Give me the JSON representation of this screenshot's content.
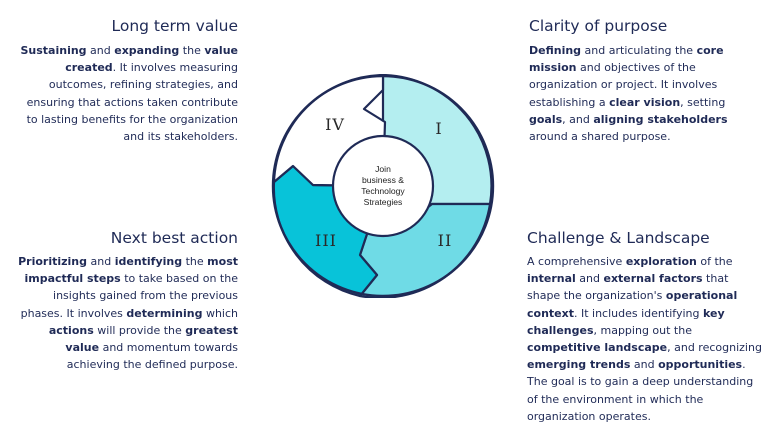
{
  "colors": {
    "segment_I": "#b4eef0",
    "segment_II": "#6fdbe6",
    "segment_III": "#08c3d9",
    "segment_IV": "#ffffff",
    "outline": "#1f2a56",
    "text": "#1f2a56"
  },
  "center": {
    "lines": [
      "Join",
      "business &",
      "Technology",
      "Strategies"
    ]
  },
  "segments": [
    {
      "numeral": "I"
    },
    {
      "numeral": "II"
    },
    {
      "numeral": "III"
    },
    {
      "numeral": "IV"
    }
  ],
  "quadrants": {
    "top_left": {
      "title": "Long term value",
      "body": [
        {
          "text": "Sustaining",
          "bold": true
        },
        {
          "text": " and ",
          "bold": false
        },
        {
          "text": "expanding",
          "bold": true
        },
        {
          "text": " the ",
          "bold": false
        },
        {
          "text": "value created",
          "bold": true
        },
        {
          "text": ". It involves measuring outcomes, refining strategies, and ensuring that actions taken contribute to lasting benefits for the organization and its stakeholders.",
          "bold": false
        }
      ]
    },
    "top_right": {
      "title": "Clarity of purpose",
      "body": [
        {
          "text": "Defining",
          "bold": true
        },
        {
          "text": " and articulating the ",
          "bold": false
        },
        {
          "text": "core mission",
          "bold": true
        },
        {
          "text": " and objectives of the organization or project. It involves establishing a ",
          "bold": false
        },
        {
          "text": "clear vision",
          "bold": true
        },
        {
          "text": ", setting ",
          "bold": false
        },
        {
          "text": "goals",
          "bold": true
        },
        {
          "text": ", and ",
          "bold": false
        },
        {
          "text": "aligning stakeholders",
          "bold": true
        },
        {
          "text": " around a shared purpose.",
          "bold": false
        }
      ]
    },
    "bottom_left": {
      "title": "Next best action",
      "body": [
        {
          "text": "Prioritizing",
          "bold": true
        },
        {
          "text": " and ",
          "bold": false
        },
        {
          "text": "identifying",
          "bold": true
        },
        {
          "text": " the ",
          "bold": false
        },
        {
          "text": "most impactful steps",
          "bold": true
        },
        {
          "text": " to take based on the insights gained from the previous phases. It involves ",
          "bold": false
        },
        {
          "text": "determining",
          "bold": true
        },
        {
          "text": " which ",
          "bold": false
        },
        {
          "text": "actions",
          "bold": true
        },
        {
          "text": " will provide the ",
          "bold": false
        },
        {
          "text": "greatest value",
          "bold": true
        },
        {
          "text": " and momentum towards achieving the defined purpose.",
          "bold": false
        }
      ]
    },
    "bottom_right": {
      "title": "Challenge & Landscape",
      "body": [
        {
          "text": "A comprehensive ",
          "bold": false
        },
        {
          "text": "exploration",
          "bold": true
        },
        {
          "text": " of the ",
          "bold": false
        },
        {
          "text": "internal",
          "bold": true
        },
        {
          "text": " and ",
          "bold": false
        },
        {
          "text": "external factors",
          "bold": true
        },
        {
          "text": " that shape the organization's ",
          "bold": false
        },
        {
          "text": "operational context",
          "bold": true
        },
        {
          "text": ". It includes identifying ",
          "bold": false
        },
        {
          "text": "key challenges",
          "bold": true
        },
        {
          "text": ", mapping out the ",
          "bold": false
        },
        {
          "text": "competitive landscape",
          "bold": true
        },
        {
          "text": ", and recognizing ",
          "bold": false
        },
        {
          "text": "emerging trends",
          "bold": true
        },
        {
          "text": " and ",
          "bold": false
        },
        {
          "text": "opportunities",
          "bold": true
        },
        {
          "text": ". The goal is to gain a deep understanding of the environment in which the organization operates.",
          "bold": false
        }
      ]
    }
  }
}
